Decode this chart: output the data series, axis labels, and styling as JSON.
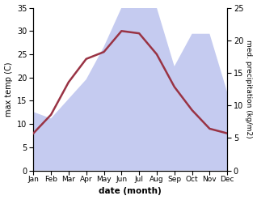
{
  "months": [
    "Jan",
    "Feb",
    "Mar",
    "Apr",
    "May",
    "Jun",
    "Jul",
    "Aug",
    "Sep",
    "Oct",
    "Nov",
    "Dec"
  ],
  "temperature": [
    8,
    12,
    19,
    24,
    25.5,
    30,
    29.5,
    25,
    18,
    13,
    9,
    8
  ],
  "precipitation": [
    9,
    8,
    11,
    14,
    19,
    25,
    33,
    25,
    16,
    21,
    21,
    12
  ],
  "temp_color": "#993344",
  "precip_fill_color": "#c5cbf0",
  "temp_ylim": [
    0,
    35
  ],
  "precip_ylim": [
    0,
    25
  ],
  "temp_yticks": [
    0,
    5,
    10,
    15,
    20,
    25,
    30,
    35
  ],
  "precip_yticks": [
    0,
    5,
    10,
    15,
    20,
    25
  ],
  "xlabel": "date (month)",
  "ylabel_left": "max temp (C)",
  "ylabel_right": "med. precipitation (kg/m2)",
  "fig_width": 3.18,
  "fig_height": 2.47,
  "dpi": 100
}
